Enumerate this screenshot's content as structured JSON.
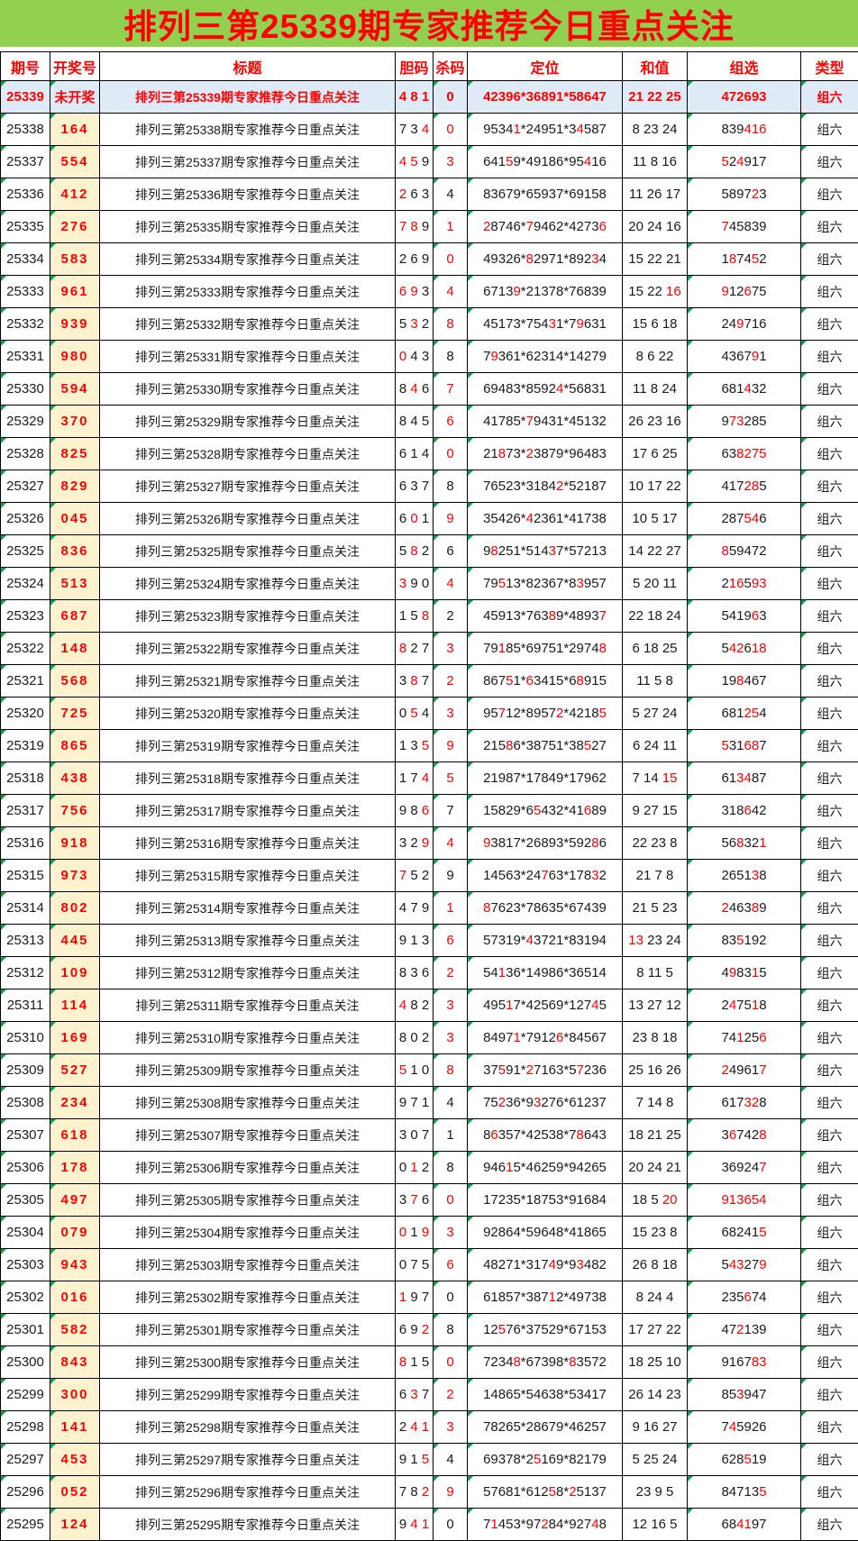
{
  "banner": {
    "title": "排列三第25339期专家推荐今日重点关注"
  },
  "colors": {
    "banner_bg": "#92d050",
    "accent_red": "#ff0000",
    "draw_cell_bg": "#fdf2ce",
    "hot_row_bg": "#deebf7",
    "triangle_green": "#00a651",
    "border": "#000000"
  },
  "columns": [
    {
      "key": "issue",
      "label": "期号"
    },
    {
      "key": "draw",
      "label": "开奖号"
    },
    {
      "key": "title",
      "label": "标题"
    },
    {
      "key": "dan",
      "label": "胆码"
    },
    {
      "key": "kill",
      "label": "杀码"
    },
    {
      "key": "pos",
      "label": "定位"
    },
    {
      "key": "sum",
      "label": "和值"
    },
    {
      "key": "group",
      "label": "组选"
    },
    {
      "key": "type",
      "label": "类型"
    }
  ],
  "rows": [
    {
      "hot": true,
      "issue": "25339",
      "draw": "未开奖",
      "title": "排列三第25339期专家推荐今日重点关注",
      "dan": "4 8 1",
      "kill": "0",
      "pos": "42396*36891*58647",
      "sum": "21 22 25",
      "group": "472693",
      "type": "组六"
    },
    {
      "issue": "25338",
      "draw": "164",
      "title": "排列三第25338期专家推荐今日重点关注",
      "dan": "7 3 [4]",
      "kill": "[0]",
      "pos": "9534[1]*24951*3[4]587",
      "sum": "8 23 24",
      "group": "839[416]",
      "type": "组六"
    },
    {
      "issue": "25337",
      "draw": "554",
      "title": "排列三第25337期专家推荐今日重点关注",
      "dan": "[4] [5] 9",
      "kill": "[3]",
      "pos": "641[5]9*49186*95[4]16",
      "sum": "11 8 16",
      "group": "[5]2[4]917",
      "type": "组六"
    },
    {
      "issue": "25336",
      "draw": "412",
      "title": "排列三第25336期专家推荐今日重点关注",
      "dan": "[2] 6 3",
      "kill": "4",
      "pos": "83679*65937*69158",
      "sum": "11 26 17",
      "group": "5897[2]3",
      "type": "组六"
    },
    {
      "issue": "25335",
      "draw": "276",
      "title": "排列三第25335期专家推荐今日重点关注",
      "dan": "[7] [8] 9",
      "kill": "[1]",
      "pos": "[2]8746*[7]9462*4273[6]",
      "sum": "20 24 16",
      "group": "[7]45839",
      "type": "组六"
    },
    {
      "issue": "25334",
      "draw": "583",
      "title": "排列三第25334期专家推荐今日重点关注",
      "dan": "2 6 9",
      "kill": "[0]",
      "pos": "49326*[8]2971*892[3]4",
      "sum": "15 22 21",
      "group": "1[8]74[5]2",
      "type": "组六"
    },
    {
      "issue": "25333",
      "draw": "961",
      "title": "排列三第25333期专家推荐今日重点关注",
      "dan": "[6] [9] 3",
      "kill": "[4]",
      "pos": "6713[9]*21378*76839",
      "sum": "15 22 [16]",
      "group": "[9]12[6]75",
      "type": "组六"
    },
    {
      "issue": "25332",
      "draw": "939",
      "title": "排列三第25332期专家推荐今日重点关注",
      "dan": "5 [3] 2",
      "kill": "[8]",
      "pos": "45173*754[3]1*7[9]631",
      "sum": "15 6 18",
      "group": "24[9]716",
      "type": "组六"
    },
    {
      "issue": "25331",
      "draw": "980",
      "title": "排列三第25331期专家推荐今日重点关注",
      "dan": "[0] 4 3",
      "kill": "8",
      "pos": "7[9]361*62314*14279",
      "sum": "8 6 22",
      "group": "4367[9]1",
      "type": "组六"
    },
    {
      "issue": "25330",
      "draw": "594",
      "title": "排列三第25330期专家推荐今日重点关注",
      "dan": "8 [4] 6",
      "kill": "[7]",
      "pos": "69483*8592[4]*56831",
      "sum": "11 8 24",
      "group": "681[4]32",
      "type": "组六"
    },
    {
      "issue": "25329",
      "draw": "370",
      "title": "排列三第25329期专家推荐今日重点关注",
      "dan": "8 4 5",
      "kill": "[6]",
      "pos": "41785*[7]9431*45132",
      "sum": "26 23 16",
      "group": "9[73]285",
      "type": "组六"
    },
    {
      "issue": "25328",
      "draw": "825",
      "title": "排列三第25328期专家推荐今日重点关注",
      "dan": "6 1 4",
      "kill": "[0]",
      "pos": "21[8]73*[2]3879*96483",
      "sum": "17 6 25",
      "group": "63[8275]",
      "type": "组六"
    },
    {
      "issue": "25327",
      "draw": "829",
      "title": "排列三第25327期专家推荐今日重点关注",
      "dan": "6 3 7",
      "kill": "8",
      "pos": "76523*3184[2]*52187",
      "sum": "10 17 22",
      "group": "417[28]5",
      "type": "组六"
    },
    {
      "issue": "25326",
      "draw": "045",
      "title": "排列三第25326期专家推荐今日重点关注",
      "dan": "6 [0] 1",
      "kill": "[9]",
      "pos": "35426*[4]2361*41738",
      "sum": "10 5 17",
      "group": "287[54]6",
      "type": "组六"
    },
    {
      "issue": "25325",
      "draw": "836",
      "title": "排列三第25325期专家推荐今日重点关注",
      "dan": "5 [8] 2",
      "kill": "6",
      "pos": "9[8]251*514[3]7*57213",
      "sum": "14 22 27",
      "group": "[8]59472",
      "type": "组六"
    },
    {
      "issue": "25324",
      "draw": "513",
      "title": "排列三第25324期专家推荐今日重点关注",
      "dan": "[3] 9 0",
      "kill": "[4]",
      "pos": "79[5]13*82367*8[3]957",
      "sum": "5 20 11",
      "group": "2[16]5[93]",
      "type": "组六"
    },
    {
      "issue": "25323",
      "draw": "687",
      "title": "排列三第25323期专家推荐今日重点关注",
      "dan": "1 5 [8]",
      "kill": "2",
      "pos": "45913*763[8]9*4893[7]",
      "sum": "22 18 24",
      "group": "5419[6]3",
      "type": "组六"
    },
    {
      "issue": "25322",
      "draw": "148",
      "title": "排列三第25322期专家推荐今日重点关注",
      "dan": "[8] 2 7",
      "kill": "[3]",
      "pos": "79[1]85*69751*2974[8]",
      "sum": "6 18 25",
      "group": "5[42]6[18]",
      "type": "组六"
    },
    {
      "issue": "25321",
      "draw": "568",
      "title": "排列三第25321期专家推荐今日重点关注",
      "dan": "3 [8] 7",
      "kill": "[2]",
      "pos": "867[5]1*[6]3415*6[8]915",
      "sum": "11 5 8",
      "group": "19[8]467",
      "type": "组六"
    },
    {
      "issue": "25320",
      "draw": "725",
      "title": "排列三第25320期专家推荐今日重点关注",
      "dan": "0 [5] 4",
      "kill": "[3]",
      "pos": "95[7]12*8957[2]*4218[5]",
      "sum": "5 27 24",
      "group": "681[25]4",
      "type": "组六"
    },
    {
      "issue": "25319",
      "draw": "865",
      "title": "排列三第25319期专家推荐今日重点关注",
      "dan": "1 3 [5]",
      "kill": "[9]",
      "pos": "215[8]6*38751*38[5]27",
      "sum": "6 24 11",
      "group": "[5]31[68]7",
      "type": "组六"
    },
    {
      "issue": "25318",
      "draw": "438",
      "title": "排列三第25318期专家推荐今日重点关注",
      "dan": "1 7 [4]",
      "kill": "[5]",
      "pos": "21987*17849*17962",
      "sum": "7 14 [15]",
      "group": "61[34]87",
      "type": "组六"
    },
    {
      "issue": "25317",
      "draw": "756",
      "title": "排列三第25317期专家推荐今日重点关注",
      "dan": "9 8 [6]",
      "kill": "7",
      "pos": "15829*6[5]432*41[6]89",
      "sum": "9 27 15",
      "group": "318[6]42",
      "type": "组六"
    },
    {
      "issue": "25316",
      "draw": "918",
      "title": "排列三第25316期专家推荐今日重点关注",
      "dan": "3 2 [9]",
      "kill": "[4]",
      "pos": "[9]3817*26893*592[8]6",
      "sum": "22 23 8",
      "group": "56[8]32[1]",
      "type": "组六"
    },
    {
      "issue": "25315",
      "draw": "973",
      "title": "排列三第25315期专家推荐今日重点关注",
      "dan": "[7] 5 2",
      "kill": "9",
      "pos": "14563*24[7]63*178[3]2",
      "sum": "21 7 8",
      "group": "2651[3]8",
      "type": "组六"
    },
    {
      "issue": "25314",
      "draw": "802",
      "title": "排列三第25314期专家推荐今日重点关注",
      "dan": "4 7 9",
      "kill": "[1]",
      "pos": "[8]7623*78635*67439",
      "sum": "21 5 23",
      "group": "[2]463[8]9",
      "type": "组六"
    },
    {
      "issue": "25313",
      "draw": "445",
      "title": "排列三第25313期专家推荐今日重点关注",
      "dan": "9 1 3",
      "kill": "[6]",
      "pos": "57319*[4]3721*83194",
      "sum": "[13] 23 24",
      "group": "83[5]192",
      "type": "组六"
    },
    {
      "issue": "25312",
      "draw": "109",
      "title": "排列三第25312期专家推荐今日重点关注",
      "dan": "8 3 6",
      "kill": "[2]",
      "pos": "54[1]36*14986*36514",
      "sum": "8 11 5",
      "group": "4[9]83[1]5",
      "type": "组六"
    },
    {
      "issue": "25311",
      "draw": "114",
      "title": "排列三第25311期专家推荐今日重点关注",
      "dan": "[4] 8 2",
      "kill": "[3]",
      "pos": "495[1]7*42569*127[4]5",
      "sum": "13 27 12",
      "group": "2[4]75[1]8",
      "type": "组六"
    },
    {
      "issue": "25310",
      "draw": "169",
      "title": "排列三第25310期专家推荐今日重点关注",
      "dan": "8 0 2",
      "kill": "[3]",
      "pos": "8497[1]*7912[6]*84567",
      "sum": "23 8 18",
      "group": "74[1]25[6]",
      "type": "组六"
    },
    {
      "issue": "25309",
      "draw": "527",
      "title": "排列三第25309期专家推荐今日重点关注",
      "dan": "[5] 1 0",
      "kill": "[8]",
      "pos": "37[5]91*[2]7163*5[7]236",
      "sum": "25 16 26",
      "group": "[2]4961[7]",
      "type": "组六"
    },
    {
      "issue": "25308",
      "draw": "234",
      "title": "排列三第25308期专家推荐今日重点关注",
      "dan": "9 7 1",
      "kill": "4",
      "pos": "75[2]36*9[3]276*61237",
      "sum": "7 14 8",
      "group": "617[32]8",
      "type": "组六"
    },
    {
      "issue": "25307",
      "draw": "618",
      "title": "排列三第25307期专家推荐今日重点关注",
      "dan": "3 0 7",
      "kill": "1",
      "pos": "8[6]357*42538*7[8]643",
      "sum": "18 21 25",
      "group": "3[6]742[8]",
      "type": "组六"
    },
    {
      "issue": "25306",
      "draw": "178",
      "title": "排列三第25306期专家推荐今日重点关注",
      "dan": "0 [1] 2",
      "kill": "8",
      "pos": "946[1]5*46259*94265",
      "sum": "20 24 21",
      "group": "36924[7]",
      "type": "组六"
    },
    {
      "issue": "25305",
      "draw": "497",
      "title": "排列三第25305期专家推荐今日重点关注",
      "dan": "3 [7] 6",
      "kill": "[0]",
      "pos": "17235*18753*91684",
      "sum": "18 5 [20]",
      "group": "[913654]",
      "type": "组六"
    },
    {
      "issue": "25304",
      "draw": "079",
      "title": "排列三第25304期专家推荐今日重点关注",
      "dan": "[0] 1 [9]",
      "kill": "[3]",
      "pos": "92864*59648*41865",
      "sum": "15 23 8",
      "group": "68241[5]",
      "type": "组六"
    },
    {
      "issue": "25303",
      "draw": "943",
      "title": "排列三第25303期专家推荐今日重点关注",
      "dan": "0 7 5",
      "kill": "[6]",
      "pos": "48271*317[4]9*9[3]482",
      "sum": "26 8 18",
      "group": "5[43]27[9]",
      "type": "组六"
    },
    {
      "issue": "25302",
      "draw": "016",
      "title": "排列三第25302期专家推荐今日重点关注",
      "dan": "[1] 9 7",
      "kill": "0",
      "pos": "61857*387[1]2*49738",
      "sum": "8 24 4",
      "group": "235[6]74",
      "type": "组六"
    },
    {
      "issue": "25301",
      "draw": "582",
      "title": "排列三第25301期专家推荐今日重点关注",
      "dan": "6 9 [2]",
      "kill": "8",
      "pos": "12[5]76*37529*67153",
      "sum": "17 27 22",
      "group": "47[2]139",
      "type": "组六"
    },
    {
      "issue": "25300",
      "draw": "843",
      "title": "排列三第25300期专家推荐今日重点关注",
      "dan": "[8] 1 5",
      "kill": "[0]",
      "pos": "7234[8]*67398*[8]3572",
      "sum": "18 25 10",
      "group": "9167[83]",
      "type": "组六"
    },
    {
      "issue": "25299",
      "draw": "300",
      "title": "排列三第25299期专家推荐今日重点关注",
      "dan": "6 [3] 7",
      "kill": "[2]",
      "pos": "14865*54638*53417",
      "sum": "26 14 23",
      "group": "85[3]947",
      "type": "组六"
    },
    {
      "issue": "25298",
      "draw": "141",
      "title": "排列三第25298期专家推荐今日重点关注",
      "dan": "2 [4] [1]",
      "kill": "[3]",
      "pos": "78265*28679*46257",
      "sum": "9 16 27",
      "group": "7[4]5926",
      "type": "组六"
    },
    {
      "issue": "25297",
      "draw": "453",
      "title": "排列三第25297期专家推荐今日重点关注",
      "dan": "9 1 [5]",
      "kill": "4",
      "pos": "69378*2[5]169*82179",
      "sum": "5 25 24",
      "group": "628[5]19",
      "type": "组六"
    },
    {
      "issue": "25296",
      "draw": "052",
      "title": "排列三第25296期专家推荐今日重点关注",
      "dan": "7 8 [2]",
      "kill": "[9]",
      "pos": "57681*612[5]8*[2]5137",
      "sum": "23 9 5",
      "group": "84713[5]",
      "type": "组六"
    },
    {
      "issue": "25295",
      "draw": "124",
      "title": "排列三第25295期专家推荐今日重点关注",
      "dan": "9 [4] [1]",
      "kill": "0",
      "pos": "7[1]453*97[2]84*927[4]8",
      "sum": "12 16 5",
      "group": "68[41]97",
      "type": "组六"
    }
  ]
}
